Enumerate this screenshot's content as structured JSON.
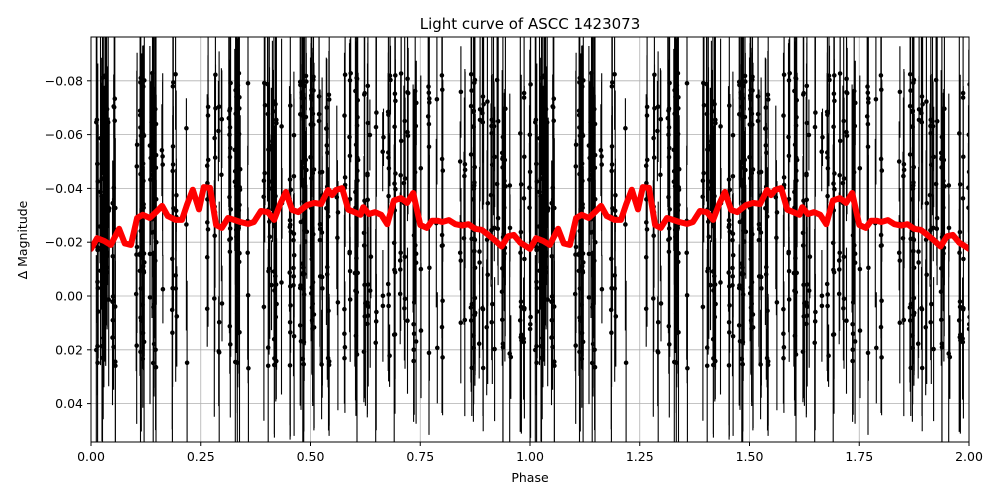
{
  "chart_data": {
    "type": "scatter",
    "title": "Light curve of ASCC 1423073",
    "xlabel": "Phase",
    "ylabel": "Δ Magnitude",
    "xlim": [
      0.0,
      2.0
    ],
    "ylim": [
      0.054,
      -0.096
    ],
    "y_inverted": true,
    "grid": true,
    "legend": null,
    "x_ticks": [
      "0.00",
      "0.25",
      "0.50",
      "0.75",
      "1.00",
      "1.25",
      "1.50",
      "1.75",
      "2.00"
    ],
    "y_ticks": [
      "−0.08",
      "−0.06",
      "−0.04",
      "−0.02",
      "0.00",
      "0.02",
      "0.04"
    ],
    "x_tick_values": [
      0.0,
      0.25,
      0.5,
      0.75,
      1.0,
      1.25,
      1.5,
      1.75,
      2.0
    ],
    "y_tick_values": [
      -0.08,
      -0.06,
      -0.04,
      -0.02,
      0.0,
      0.02,
      0.04
    ],
    "series": [
      {
        "name": "observations",
        "style": "black points with vertical error bars",
        "color": "#000000",
        "description": "Dense phase-folded photometric measurements spanning roughly −0.096 to +0.054 Δmag, with error bars; pattern repeats with period 1.0 in phase"
      },
      {
        "name": "binned/smoothed curve",
        "style": "thick red line",
        "color": "#ff0000",
        "x": [
          0.0,
          0.014,
          0.03,
          0.045,
          0.064,
          0.077,
          0.091,
          0.105,
          0.118,
          0.134,
          0.148,
          0.162,
          0.175,
          0.193,
          0.207,
          0.219,
          0.232,
          0.246,
          0.257,
          0.271,
          0.285,
          0.298,
          0.312,
          0.326,
          0.34,
          0.358,
          0.371,
          0.387,
          0.403,
          0.417,
          0.431,
          0.444,
          0.458,
          0.472,
          0.492,
          0.509,
          0.524,
          0.54,
          0.549,
          0.558,
          0.572,
          0.586,
          0.6,
          0.614,
          0.62,
          0.633,
          0.647,
          0.661,
          0.675,
          0.69,
          0.706,
          0.72,
          0.734,
          0.75,
          0.765,
          0.777,
          0.79,
          0.8,
          0.815,
          0.83,
          0.845,
          0.86,
          0.875,
          0.89,
          0.905,
          0.92,
          0.935,
          0.95,
          0.963,
          0.978,
          0.99,
          1.0
        ],
        "y": [
          -0.0175,
          -0.0215,
          -0.0205,
          -0.019,
          -0.025,
          -0.0195,
          -0.019,
          -0.029,
          -0.0302,
          -0.029,
          -0.0312,
          -0.0335,
          -0.0297,
          -0.0283,
          -0.0283,
          -0.034,
          -0.0395,
          -0.0322,
          -0.0405,
          -0.0402,
          -0.0264,
          -0.0253,
          -0.029,
          -0.0283,
          -0.0275,
          -0.0268,
          -0.0275,
          -0.0316,
          -0.0312,
          -0.0283,
          -0.0342,
          -0.0387,
          -0.032,
          -0.0312,
          -0.0338,
          -0.0346,
          -0.0342,
          -0.0394,
          -0.0375,
          -0.0394,
          -0.0401,
          -0.0321,
          -0.0312,
          -0.0302,
          -0.033,
          -0.0305,
          -0.0312,
          -0.0302,
          -0.0267,
          -0.0355,
          -0.0364,
          -0.0346,
          -0.0383,
          -0.0264,
          -0.0253,
          -0.028,
          -0.028,
          -0.0275,
          -0.0282,
          -0.0267,
          -0.0262,
          -0.0267,
          -0.025,
          -0.0246,
          -0.0227,
          -0.0207,
          -0.0184,
          -0.0222,
          -0.0227,
          -0.0198,
          -0.0186,
          -0.0175
        ]
      }
    ]
  }
}
